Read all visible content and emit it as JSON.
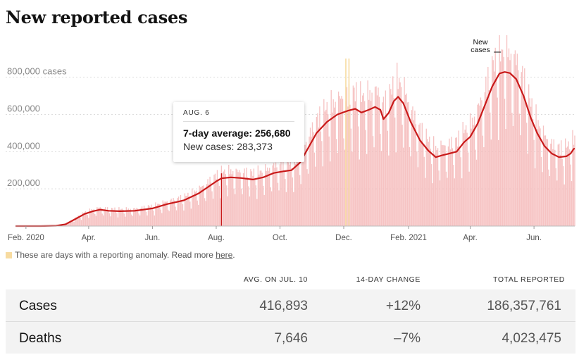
{
  "title": "New reported cases",
  "tooltip": {
    "date": "AUG. 6",
    "avg": "7-day average: 256,680",
    "new_cases": "New cases: 283,373"
  },
  "annotation": [
    "New",
    "cases"
  ],
  "anomaly_note": {
    "text": "These are days with a reporting anomaly. Read more ",
    "link": "here",
    "end": "."
  },
  "table": {
    "headers": [
      "AVG. ON JUL. 10",
      "14-DAY CHANGE",
      "TOTAL REPORTED"
    ],
    "rows": [
      {
        "label": "Cases",
        "avg": "416,893",
        "change": "+12%",
        "total": "186,357,761"
      },
      {
        "label": "Deaths",
        "avg": "7,646",
        "change": "–7%",
        "total": "4,023,475"
      }
    ]
  },
  "colors": {
    "line": "#c91a1a",
    "bars": "#f5b8b8",
    "anomaly": "#f7dba0",
    "table_bg": "#f3f3f3"
  },
  "chart_data": {
    "type": "bar",
    "title": "New reported cases",
    "xlabel": "",
    "ylabel": "cases",
    "x_range": [
      "2020-01-22",
      "2021-07-10"
    ],
    "ylim": [
      0,
      950000
    ],
    "y_ticks": [
      {
        "value": 200000,
        "label": "200,000"
      },
      {
        "value": 400000,
        "label": "400,000"
      },
      {
        "value": 600000,
        "label": "600,000"
      },
      {
        "value": 800000,
        "label": "800,000 cases"
      }
    ],
    "x_ticks": [
      {
        "date": "2020-02-01",
        "label": "Feb. 2020"
      },
      {
        "date": "2020-04-01",
        "label": "Apr."
      },
      {
        "date": "2020-06-01",
        "label": "Jun."
      },
      {
        "date": "2020-08-01",
        "label": "Aug."
      },
      {
        "date": "2020-10-01",
        "label": "Oct."
      },
      {
        "date": "2020-12-01",
        "label": "Dec."
      },
      {
        "date": "2021-02-01",
        "label": "Feb. 2021"
      },
      {
        "date": "2021-04-01",
        "label": "Apr."
      },
      {
        "date": "2021-06-01",
        "label": "Jun."
      }
    ],
    "grid": true,
    "series": [
      {
        "name": "7-day average",
        "type": "line",
        "points": [
          [
            "2020-01-22",
            0
          ],
          [
            "2020-02-15",
            0
          ],
          [
            "2020-03-01",
            2000
          ],
          [
            "2020-03-10",
            10000
          ],
          [
            "2020-03-20",
            40000
          ],
          [
            "2020-03-28",
            65000
          ],
          [
            "2020-04-05",
            80000
          ],
          [
            "2020-04-12",
            88000
          ],
          [
            "2020-04-20",
            82000
          ],
          [
            "2020-05-01",
            80000
          ],
          [
            "2020-05-15",
            82000
          ],
          [
            "2020-06-01",
            95000
          ],
          [
            "2020-06-15",
            118000
          ],
          [
            "2020-07-01",
            138000
          ],
          [
            "2020-07-15",
            175000
          ],
          [
            "2020-08-01",
            240000
          ],
          [
            "2020-08-06",
            256680
          ],
          [
            "2020-08-15",
            262000
          ],
          [
            "2020-08-25",
            258000
          ],
          [
            "2020-09-05",
            250000
          ],
          [
            "2020-09-15",
            262000
          ],
          [
            "2020-09-25",
            285000
          ],
          [
            "2020-10-05",
            295000
          ],
          [
            "2020-10-12",
            300000
          ],
          [
            "2020-10-20",
            340000
          ],
          [
            "2020-10-28",
            420000
          ],
          [
            "2020-11-05",
            500000
          ],
          [
            "2020-11-15",
            560000
          ],
          [
            "2020-11-25",
            600000
          ],
          [
            "2020-12-05",
            620000
          ],
          [
            "2020-12-12",
            630000
          ],
          [
            "2020-12-18",
            610000
          ],
          [
            "2020-12-25",
            625000
          ],
          [
            "2020-12-31",
            640000
          ],
          [
            "2021-01-05",
            625000
          ],
          [
            "2021-01-08",
            575000
          ],
          [
            "2021-01-13",
            608000
          ],
          [
            "2021-01-18",
            672000
          ],
          [
            "2021-01-22",
            695000
          ],
          [
            "2021-01-27",
            660000
          ],
          [
            "2021-02-03",
            560000
          ],
          [
            "2021-02-12",
            460000
          ],
          [
            "2021-02-20",
            405000
          ],
          [
            "2021-02-27",
            370000
          ],
          [
            "2021-03-05",
            380000
          ],
          [
            "2021-03-12",
            390000
          ],
          [
            "2021-03-19",
            400000
          ],
          [
            "2021-03-26",
            450000
          ],
          [
            "2021-04-01",
            480000
          ],
          [
            "2021-04-08",
            550000
          ],
          [
            "2021-04-15",
            650000
          ],
          [
            "2021-04-22",
            750000
          ],
          [
            "2021-04-29",
            820000
          ],
          [
            "2021-05-04",
            828000
          ],
          [
            "2021-05-09",
            822000
          ],
          [
            "2021-05-15",
            790000
          ],
          [
            "2021-05-22",
            700000
          ],
          [
            "2021-05-29",
            580000
          ],
          [
            "2021-06-04",
            500000
          ],
          [
            "2021-06-11",
            430000
          ],
          [
            "2021-06-18",
            390000
          ],
          [
            "2021-06-25",
            370000
          ],
          [
            "2021-07-02",
            375000
          ],
          [
            "2021-07-06",
            390000
          ],
          [
            "2021-07-09",
            415000
          ],
          [
            "2021-07-10",
            416893
          ]
        ]
      }
    ],
    "highlight": {
      "date": "2020-08-06",
      "value": 283373,
      "average": 256680
    },
    "anomaly_dates": [
      "2020-12-03",
      "2020-12-06"
    ],
    "annotation_date": "2021-04-27"
  }
}
